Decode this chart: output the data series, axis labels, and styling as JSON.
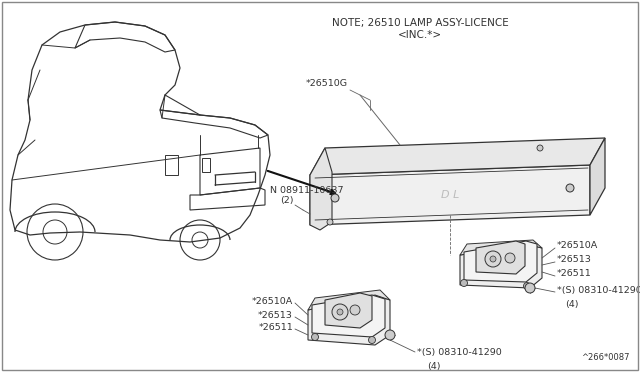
{
  "bg_color": "#ffffff",
  "line_color": "#333333",
  "text_color": "#333333",
  "title_line1": "NOTE; 26510 LAMP ASSY-LICENCE",
  "title_line2": "＜INC.＊＞",
  "footer": "^266*0087",
  "fig_w": 6.4,
  "fig_h": 3.72
}
